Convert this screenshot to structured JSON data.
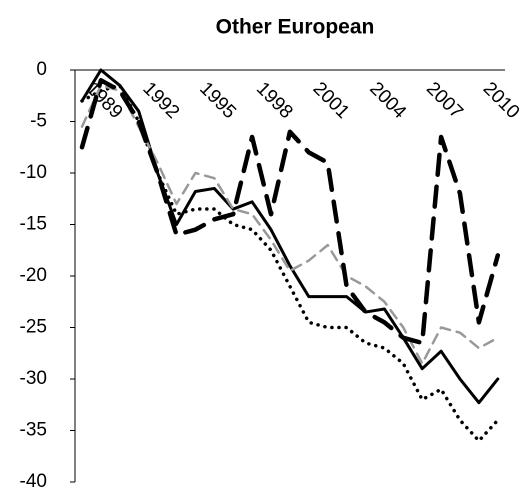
{
  "chart_data": {
    "type": "line",
    "title": "Other European",
    "categories": [
      null,
      "1989",
      null,
      null,
      "1992",
      null,
      null,
      "1995",
      null,
      null,
      "1998",
      null,
      null,
      "2001",
      null,
      null,
      "2004",
      null,
      null,
      "2007",
      null,
      null,
      "2010"
    ],
    "series": [
      {
        "color": "#000000",
        "style": "solid",
        "values": [
          -3,
          0,
          -1.5,
          -4,
          -10,
          -15,
          -11.8,
          -11.5,
          -13.5,
          -12.8,
          -15.5,
          -19,
          -22,
          -22,
          -22,
          -23.5,
          -23.2,
          -26,
          -29,
          -27.3,
          -30,
          -32.3,
          -30
        ]
      },
      {
        "color": "#000000",
        "style": "dotted",
        "values": [
          -3,
          -2,
          -1.5,
          -5,
          -10,
          -14,
          -13.5,
          -13.5,
          -15,
          -15.5,
          -17.5,
          -21,
          -24.5,
          -25,
          -25,
          -26.5,
          -27,
          -28.5,
          -32,
          -31,
          -34,
          -36,
          -34
        ]
      },
      {
        "color": "#999999",
        "style": "dashed",
        "values": [
          -5.5,
          -1.5,
          -2,
          -5.5,
          -9,
          -13,
          -10,
          -10.5,
          -13.5,
          -14,
          -16.5,
          -19.5,
          -18.5,
          -17,
          -20,
          -21,
          -22.5,
          -25,
          -28.5,
          -25,
          -25.5,
          -27,
          -26
        ]
      },
      {
        "color": "#000000",
        "style": "longdash",
        "values": [
          -7.5,
          -1,
          -2,
          -5,
          -10,
          -16,
          -15.5,
          -14.5,
          -14,
          -6.5,
          -14,
          -6,
          -8,
          -9,
          -21,
          -23.5,
          -24.5,
          -26,
          -26.5,
          -6.5,
          -12,
          -24.5,
          -18
        ]
      }
    ],
    "ylim": [
      -40,
      0
    ],
    "yticks": [
      0,
      -5,
      -10,
      -15,
      -20,
      -25,
      -30,
      -35,
      -40
    ]
  }
}
